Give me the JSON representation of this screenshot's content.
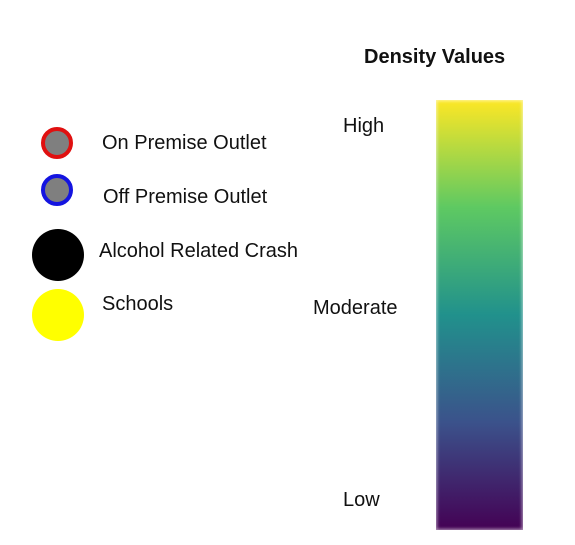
{
  "legend": {
    "items": [
      {
        "label": "On Premise Outlet",
        "fill": "#7f7f7f",
        "border": "#e01010"
      },
      {
        "label": "Off Premise Outlet",
        "fill": "#7f7f7f",
        "border": "#1414e0"
      },
      {
        "label": "Alcohol Related Crash",
        "fill": "#000000",
        "border": "#000000"
      },
      {
        "label": "Schools",
        "fill": "#ffff00",
        "border": "#ffff00"
      }
    ]
  },
  "scale": {
    "title": "Density Values",
    "labels": {
      "high": "High",
      "moderate": "Moderate",
      "low": "Low"
    },
    "colors": [
      "#fde725",
      "#5ec962",
      "#21918c",
      "#3b528b",
      "#440154"
    ]
  }
}
